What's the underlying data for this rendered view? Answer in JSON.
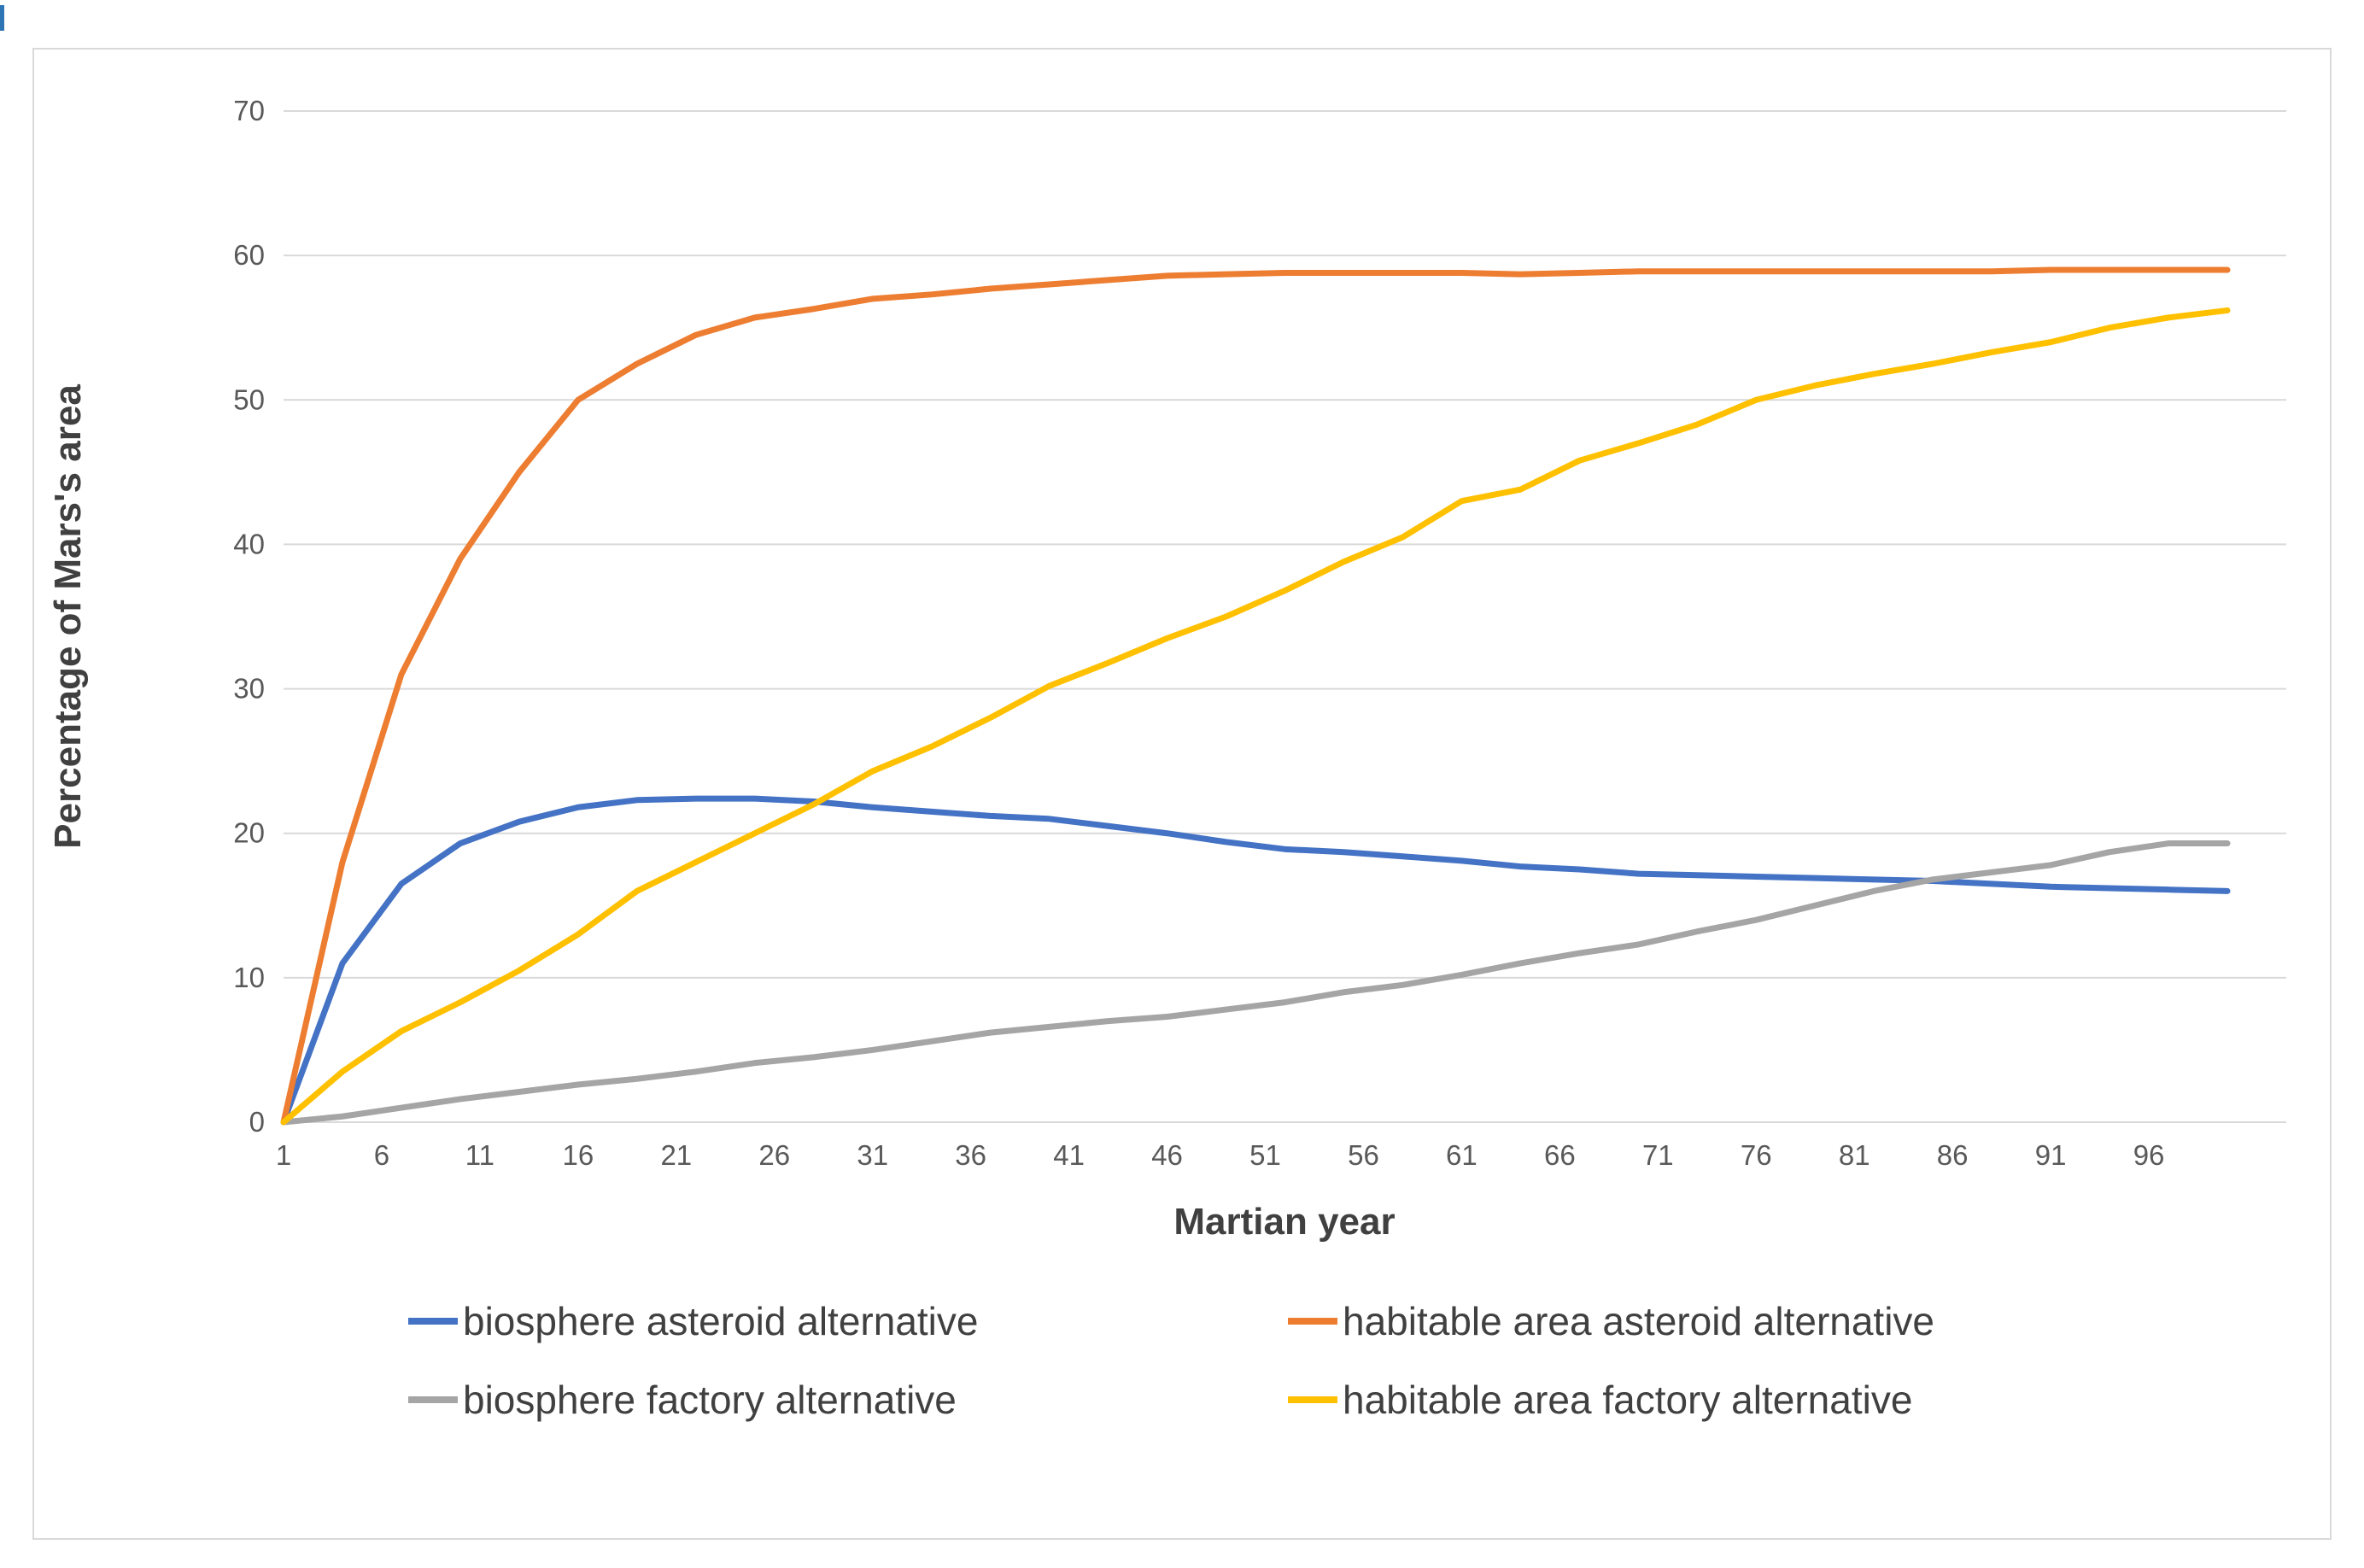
{
  "chart_data": {
    "type": "line",
    "title": "",
    "xlabel": "Martian year",
    "ylabel": "Percentage of Mars's area",
    "xlim": [
      1,
      103
    ],
    "ylim": [
      0,
      70
    ],
    "x_ticks": [
      1,
      6,
      11,
      16,
      21,
      26,
      31,
      36,
      41,
      46,
      51,
      56,
      61,
      66,
      71,
      76,
      81,
      86,
      91,
      96
    ],
    "y_ticks": [
      0,
      10,
      20,
      30,
      40,
      50,
      60,
      70
    ],
    "grid": "horizontal",
    "gridline_color": "#d9d9d9",
    "tick_label_color": "#595959",
    "legend_position": "bottom",
    "x": [
      1,
      4,
      7,
      10,
      13,
      16,
      19,
      22,
      25,
      28,
      31,
      34,
      37,
      40,
      43,
      46,
      49,
      52,
      55,
      58,
      61,
      64,
      67,
      70,
      73,
      76,
      79,
      82,
      85,
      88,
      91,
      94,
      97,
      100
    ],
    "series": [
      {
        "name": "biosphere asteroid alternative",
        "color": "#4472C4",
        "values": [
          0,
          11,
          16.5,
          19.3,
          20.8,
          21.8,
          22.3,
          22.4,
          22.4,
          22.2,
          21.8,
          21.5,
          21.2,
          21.0,
          20.5,
          20.0,
          19.4,
          18.9,
          18.7,
          18.4,
          18.1,
          17.7,
          17.5,
          17.2,
          17.1,
          17.0,
          16.9,
          16.8,
          16.7,
          16.5,
          16.3,
          16.2,
          16.1,
          16.0
        ]
      },
      {
        "name": "habitable area asteroid alternative",
        "color": "#ED7D31",
        "values": [
          0,
          18,
          31,
          39,
          45,
          50,
          52.5,
          54.5,
          55.7,
          56.3,
          57.0,
          57.3,
          57.7,
          58.0,
          58.3,
          58.6,
          58.7,
          58.8,
          58.8,
          58.8,
          58.8,
          58.7,
          58.8,
          58.9,
          58.9,
          58.9,
          58.9,
          58.9,
          58.9,
          58.9,
          59.0,
          59.0,
          59.0,
          59.0
        ]
      },
      {
        "name": "biosphere factory alternative",
        "color": "#A5A5A5",
        "values": [
          0,
          0.4,
          1.0,
          1.6,
          2.1,
          2.6,
          3.0,
          3.5,
          4.1,
          4.5,
          5.0,
          5.6,
          6.2,
          6.6,
          7.0,
          7.3,
          7.8,
          8.3,
          9.0,
          9.5,
          10.2,
          11.0,
          11.7,
          12.3,
          13.2,
          14.0,
          15.0,
          16.0,
          16.8,
          17.3,
          17.8,
          18.7,
          19.3,
          19.3
        ]
      },
      {
        "name": "habitable area factory alternative",
        "color": "#FFC000",
        "values": [
          0,
          3.5,
          6.3,
          8.3,
          10.5,
          13.0,
          16.0,
          18.0,
          20.0,
          22.0,
          24.3,
          26.0,
          28.0,
          30.2,
          31.8,
          33.5,
          35.0,
          36.8,
          38.8,
          40.5,
          43.0,
          43.8,
          45.8,
          47.0,
          48.3,
          50.0,
          51.0,
          51.8,
          52.5,
          53.3,
          54.0,
          55.0,
          55.7,
          56.2
        ]
      }
    ]
  }
}
